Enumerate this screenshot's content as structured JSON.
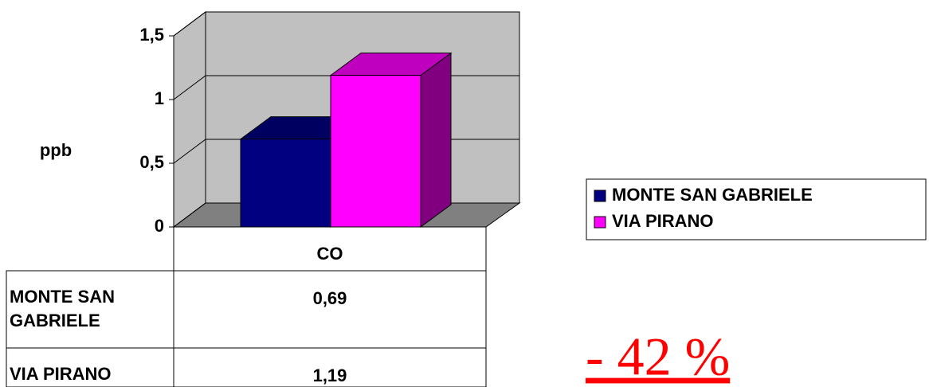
{
  "chart_data": {
    "type": "bar3d",
    "y_label": "ppb",
    "categories": [
      "CO"
    ],
    "series": [
      {
        "name": "MONTE SAN GABRIELE",
        "color": "#000080",
        "values": [
          0.69
        ],
        "value_labels": [
          "0,69"
        ]
      },
      {
        "name": "VIA PIRANO",
        "color": "#ff00ff",
        "values": [
          1.19
        ],
        "value_labels": [
          "1,19"
        ]
      }
    ],
    "ylim": [
      0,
      1.5
    ],
    "yticks": [
      0,
      {
        "value": 0.5,
        "label": "0,5"
      },
      1,
      {
        "value": 1.5,
        "label": "1,5"
      }
    ],
    "grid": true,
    "legend": "right",
    "annotation": "- 42 %"
  }
}
